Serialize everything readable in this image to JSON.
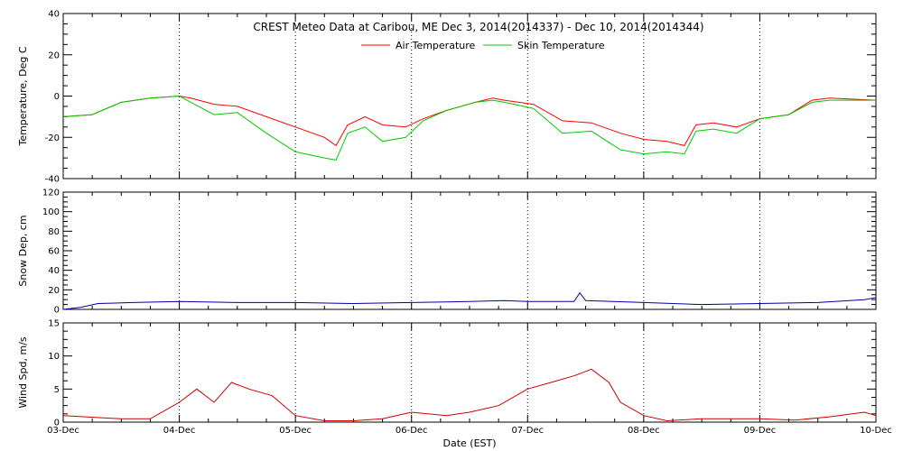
{
  "chart_data": {
    "title": "CREST Meteo Data at Caribou, ME   Dec  3, 2014(2014337) - Dec 10, 2014(2014344)",
    "xlabel": "Date (EST)",
    "x_ticks": [
      "03-Dec",
      "04-Dec",
      "05-Dec",
      "06-Dec",
      "07-Dec",
      "08-Dec",
      "09-Dec",
      "10-Dec"
    ],
    "x_range_days": [
      0,
      7
    ],
    "grid": "dotted vertical lines at each day",
    "panels": [
      {
        "id": "temperature",
        "type": "line",
        "ylabel": "Temperature, Deg C",
        "ylim": [
          -40,
          40
        ],
        "yticks": [
          -40,
          -20,
          0,
          20,
          40
        ],
        "legend_position": "top-center",
        "series": [
          {
            "name": "Air Temperature",
            "color": "#ff0000",
            "points": [
              [
                0,
                -10
              ],
              [
                0.25,
                -9
              ],
              [
                0.5,
                -3
              ],
              [
                0.75,
                -1
              ],
              [
                1,
                0
              ],
              [
                1.1,
                -1
              ],
              [
                1.3,
                -4
              ],
              [
                1.5,
                -5
              ],
              [
                1.75,
                -10
              ],
              [
                2,
                -15
              ],
              [
                2.25,
                -20
              ],
              [
                2.35,
                -24
              ],
              [
                2.45,
                -14
              ],
              [
                2.6,
                -10
              ],
              [
                2.75,
                -14
              ],
              [
                2.95,
                -15
              ],
              [
                3.1,
                -11
              ],
              [
                3.3,
                -7
              ],
              [
                3.55,
                -3
              ],
              [
                3.7,
                -1
              ],
              [
                3.8,
                -2
              ],
              [
                4.05,
                -4
              ],
              [
                4.3,
                -12
              ],
              [
                4.55,
                -13
              ],
              [
                4.8,
                -18
              ],
              [
                5.0,
                -21
              ],
              [
                5.2,
                -22
              ],
              [
                5.35,
                -24
              ],
              [
                5.45,
                -14
              ],
              [
                5.6,
                -13
              ],
              [
                5.8,
                -15
              ],
              [
                6.0,
                -11
              ],
              [
                6.25,
                -9
              ],
              [
                6.45,
                -2
              ],
              [
                6.6,
                -1
              ],
              [
                7,
                -2
              ]
            ]
          },
          {
            "name": "Skin Temperature",
            "color": "#00cc00",
            "points": [
              [
                0,
                -10
              ],
              [
                0.25,
                -9
              ],
              [
                0.5,
                -3
              ],
              [
                0.75,
                -1
              ],
              [
                1,
                0
              ],
              [
                1.1,
                -3
              ],
              [
                1.3,
                -9
              ],
              [
                1.5,
                -8
              ],
              [
                1.75,
                -18
              ],
              [
                2,
                -27
              ],
              [
                2.25,
                -30
              ],
              [
                2.35,
                -31
              ],
              [
                2.45,
                -18
              ],
              [
                2.6,
                -15
              ],
              [
                2.75,
                -22
              ],
              [
                2.95,
                -20
              ],
              [
                3.1,
                -12
              ],
              [
                3.3,
                -7
              ],
              [
                3.55,
                -3
              ],
              [
                3.7,
                -2
              ],
              [
                3.8,
                -3
              ],
              [
                4.05,
                -6
              ],
              [
                4.3,
                -18
              ],
              [
                4.55,
                -17
              ],
              [
                4.8,
                -26
              ],
              [
                5.0,
                -28
              ],
              [
                5.2,
                -27
              ],
              [
                5.35,
                -28
              ],
              [
                5.45,
                -17
              ],
              [
                5.6,
                -16
              ],
              [
                5.8,
                -18
              ],
              [
                6.0,
                -11
              ],
              [
                6.25,
                -9
              ],
              [
                6.45,
                -3
              ],
              [
                6.6,
                -2
              ],
              [
                7,
                -2
              ]
            ]
          }
        ]
      },
      {
        "id": "snow",
        "type": "line",
        "ylabel": "Snow Dep, cm",
        "ylim": [
          0,
          120
        ],
        "yticks": [
          0,
          20,
          40,
          60,
          80,
          100,
          120
        ],
        "series": [
          {
            "color": "#0000a0",
            "points": [
              [
                0,
                0
              ],
              [
                0.15,
                2
              ],
              [
                0.3,
                6
              ],
              [
                0.6,
                7
              ],
              [
                1,
                8
              ],
              [
                1.5,
                7
              ],
              [
                2,
                7
              ],
              [
                2.5,
                6
              ],
              [
                3,
                7
              ],
              [
                3.5,
                8
              ],
              [
                3.8,
                9
              ],
              [
                4,
                8
              ],
              [
                4.4,
                8
              ],
              [
                4.45,
                17
              ],
              [
                4.5,
                9
              ],
              [
                5,
                7
              ],
              [
                5.5,
                5
              ],
              [
                6,
                6
              ],
              [
                6.5,
                7
              ],
              [
                6.9,
                10
              ],
              [
                7,
                12
              ]
            ]
          }
        ]
      },
      {
        "id": "wind",
        "type": "line",
        "ylabel": "Wind Spd, m/s",
        "ylim": [
          0,
          15
        ],
        "yticks": [
          0,
          5,
          10,
          15
        ],
        "series": [
          {
            "color": "#cc0000",
            "points": [
              [
                0,
                1
              ],
              [
                0.5,
                0.5
              ],
              [
                0.75,
                0.5
              ],
              [
                0.9,
                2
              ],
              [
                1.0,
                3
              ],
              [
                1.15,
                5
              ],
              [
                1.3,
                3
              ],
              [
                1.45,
                6
              ],
              [
                1.6,
                5
              ],
              [
                1.8,
                4
              ],
              [
                2.0,
                1
              ],
              [
                2.25,
                0.2
              ],
              [
                2.5,
                0.2
              ],
              [
                2.75,
                0.5
              ],
              [
                3.0,
                1.5
              ],
              [
                3.3,
                1
              ],
              [
                3.5,
                1.5
              ],
              [
                3.75,
                2.5
              ],
              [
                4.0,
                5
              ],
              [
                4.2,
                6
              ],
              [
                4.4,
                7
              ],
              [
                4.55,
                8
              ],
              [
                4.7,
                6
              ],
              [
                4.8,
                3
              ],
              [
                5.0,
                1
              ],
              [
                5.2,
                0.2
              ],
              [
                5.5,
                0.5
              ],
              [
                6.0,
                0.5
              ],
              [
                6.3,
                0.3
              ],
              [
                6.6,
                0.8
              ],
              [
                6.9,
                1.5
              ],
              [
                7,
                1
              ]
            ]
          }
        ]
      }
    ]
  }
}
